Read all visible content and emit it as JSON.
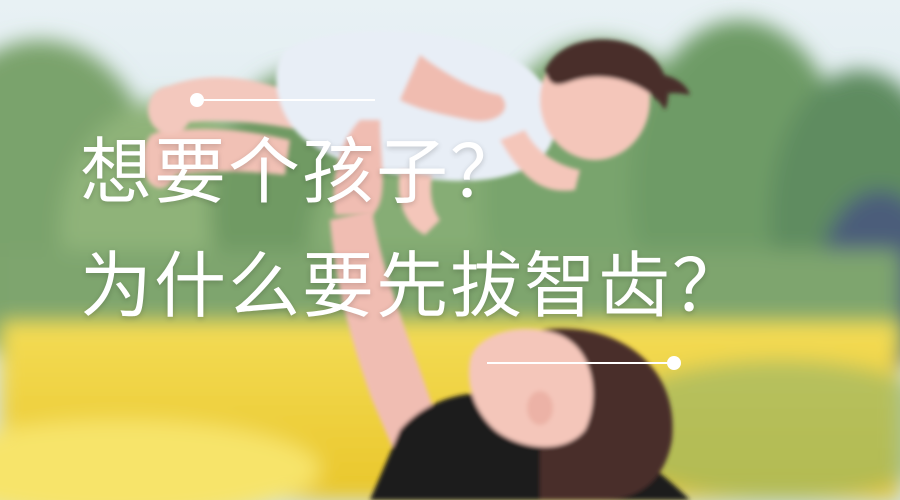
{
  "headline": {
    "line1": "想要个孩子？",
    "line2": "为什么要先拔智齿？"
  },
  "palette": {
    "sky": "#d7e8ef",
    "trees": "#6f9a6a",
    "field": "#f0d23a",
    "skin": "#f2c3b8",
    "onesie": "#e8eef6",
    "shirt": "#1d1d1f",
    "hair": "#4a2f2c",
    "text": "#ffffff"
  }
}
